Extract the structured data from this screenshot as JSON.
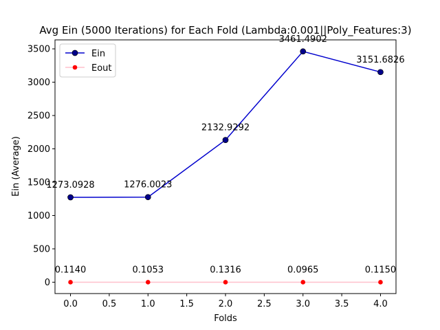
{
  "chart_data": {
    "type": "line",
    "title": "Avg Ein (5000 Iterations) for Each Fold (Lambda:0.001||Poly_Features:3)",
    "xlabel": "Folds",
    "ylabel": "Ein (Average)",
    "x": [
      0,
      1,
      2,
      3,
      4
    ],
    "xlim": [
      -0.2,
      4.2
    ],
    "ylim": [
      -170.6,
      3634.6
    ],
    "xticks": [
      0.0,
      0.5,
      1.0,
      1.5,
      2.0,
      2.5,
      3.0,
      3.5,
      4.0
    ],
    "xtick_labels": [
      "0.0",
      "0.5",
      "1.0",
      "1.5",
      "2.0",
      "2.5",
      "3.0",
      "3.5",
      "4.0"
    ],
    "yticks": [
      0,
      500,
      1000,
      1500,
      2000,
      2500,
      3000,
      3500
    ],
    "ytick_labels": [
      "0",
      "500",
      "1000",
      "1500",
      "2000",
      "2500",
      "3000",
      "3500"
    ],
    "grid": false,
    "legend_position": "top-left",
    "series": [
      {
        "name": "Ein",
        "values": [
          1273.0928,
          1276.0023,
          2132.9292,
          3461.4902,
          3151.6826
        ],
        "labels": [
          "1273.0928",
          "1276.0023",
          "2132.9292",
          "3461.4902",
          "3151.6826"
        ],
        "line_color": "#0000cd",
        "marker_color": "#00008b"
      },
      {
        "name": "Eout",
        "values": [
          0.114,
          0.1053,
          0.1316,
          0.0965,
          0.115
        ],
        "labels": [
          "0.1140",
          "0.1053",
          "0.1316",
          "0.0965",
          "0.1150"
        ],
        "line_color": "#ffc0cb",
        "marker_color": "#ff0000"
      }
    ]
  }
}
